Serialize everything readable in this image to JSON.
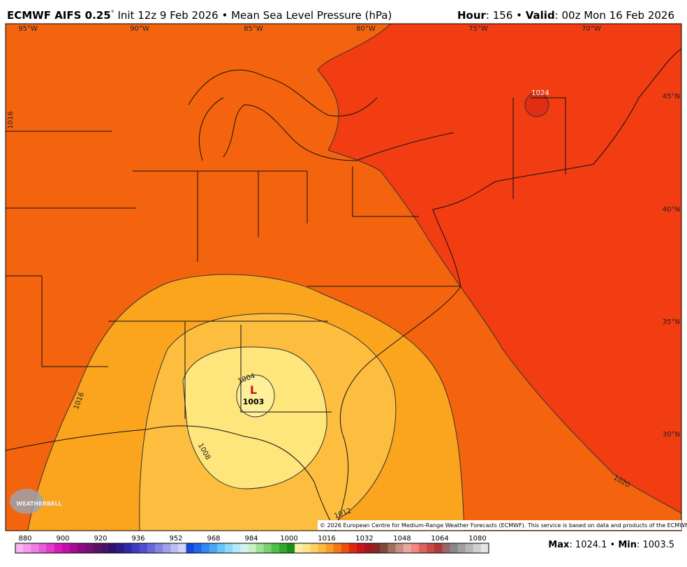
{
  "header": {
    "model": "ECMWF AIFS 0.25",
    "degree": "°",
    "subtitle": " Init 12z 9 Feb 2026 • Mean Sea Level Pressure (hPa)",
    "hour_label": "Hour",
    "hour_value": ": 156 • ",
    "valid_label": "Valid",
    "valid_value": ": 00z Mon 16 Feb 2026"
  },
  "map": {
    "longitude_labels": [
      "95°W",
      "90°W",
      "85°W",
      "80°W",
      "75°W",
      "70°W"
    ],
    "latitude_labels": [
      "45°N",
      "40°N",
      "35°N",
      "30°N"
    ],
    "contour_labels": [
      "1016",
      "1016",
      "1008",
      "1004",
      "1012",
      "1020",
      "1024"
    ],
    "low_marker": "L",
    "low_value": "1003",
    "credit": "© 2026 European Centre for Medium-Range Weather Forecasts (ECMWF). This service is based on data and products of the ECMWF.",
    "logo": "WEATHERBELL"
  },
  "colorbar": {
    "labels": [
      "880",
      "900",
      "920",
      "936",
      "952",
      "968",
      "984",
      "1000",
      "1016",
      "1032",
      "1048",
      "1064",
      "1080"
    ],
    "colors": [
      "#f7b6f0",
      "#f39ae8",
      "#ee7ee0",
      "#e85ed6",
      "#e23acb",
      "#d61cbd",
      "#c210aa",
      "#a80c96",
      "#8c0a82",
      "#741070",
      "#5c1266",
      "#461464",
      "#30106e",
      "#2a1a8c",
      "#3226a8",
      "#3c3cc0",
      "#5050cc",
      "#6868d8",
      "#8484e0",
      "#a0a0e8",
      "#bcbcf0",
      "#d4d4f6",
      "#1848d8",
      "#2068e8",
      "#3088f0",
      "#48a8f4",
      "#68c4f8",
      "#90d8fa",
      "#b4e8f8",
      "#d0f4f0",
      "#c8f0c0",
      "#a0e098",
      "#78d070",
      "#50c048",
      "#30a830",
      "#189018",
      "#f8f0a8",
      "#fce48a",
      "#fcd064",
      "#fcb840",
      "#f89c28",
      "#f47818",
      "#f0500c",
      "#e02810",
      "#c8141c",
      "#a81420",
      "#882820",
      "#7c4a40",
      "#a07060",
      "#c89080",
      "#e8a8a0",
      "#f08880",
      "#e06060",
      "#c84848",
      "#b03838",
      "#986868",
      "#888888",
      "#a0a0a0",
      "#b8b8b8",
      "#d0d0d0",
      "#e4e4e4"
    ]
  },
  "footer": {
    "max_label": "Max",
    "max_value": ": 1024.1 • ",
    "min_label": "Min",
    "min_value": ": 1003.5"
  }
}
